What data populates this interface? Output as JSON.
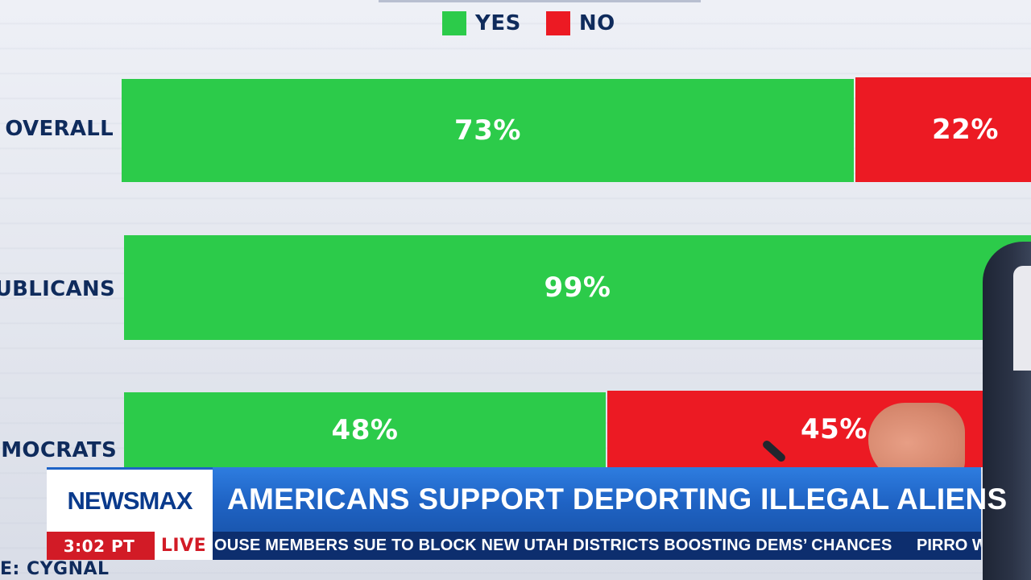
{
  "legend": [
    {
      "label": "YES",
      "color": "#2ccb4a"
    },
    {
      "label": "NO",
      "color": "#ec1a23"
    }
  ],
  "chart_data": {
    "type": "bar",
    "orientation": "horizontal-stacked",
    "categories": [
      "OVERALL",
      "UBLICANS",
      "MOCRATS"
    ],
    "series": [
      {
        "name": "YES",
        "values": [
          73,
          99,
          48
        ]
      },
      {
        "name": "NO",
        "values": [
          22,
          null,
          45
        ]
      }
    ],
    "value_labels": {
      "yes": [
        "73%",
        "99%",
        "48%"
      ],
      "no": [
        "22%",
        "",
        "45%"
      ]
    },
    "source": "E: CYGNAL"
  },
  "lower_third": {
    "logo": "NEWSMAX",
    "headline": "AMERICANS SUPPORT DEPORTING ILLEGAL ALIENS",
    "time": "3:02 PT",
    "live": "LIVE",
    "ticker": "OUSE MEMBERS SUE TO BLOCK NEW UTAH DISTRICTS BOOSTING DEMS’ CHANCES",
    "ticker_next": "PIRRO W"
  },
  "colors": {
    "yes": "#2ccb4a",
    "no": "#ec1a23",
    "label_text": "#0f2b5c",
    "headline_bg": "#1f63c4",
    "ticker_bg": "#0d2e6e",
    "live_red": "#d21b26"
  }
}
